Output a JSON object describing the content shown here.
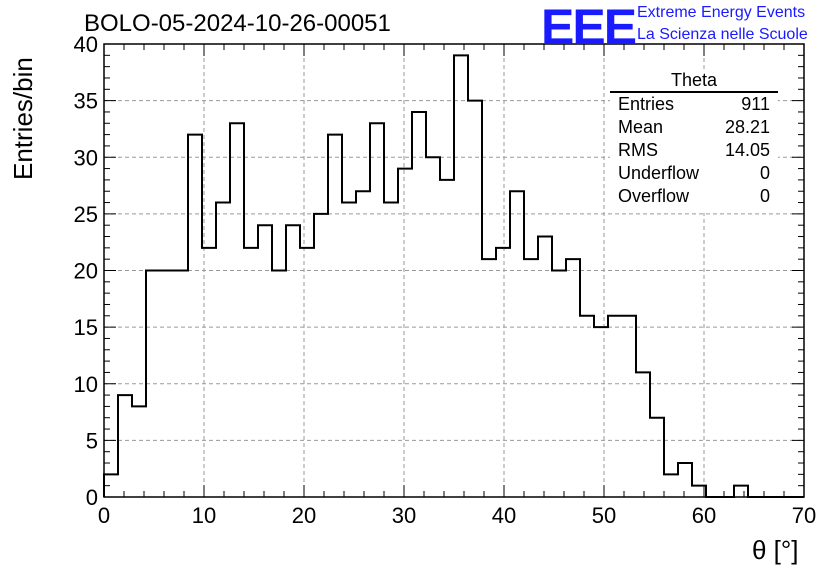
{
  "header": {
    "title": "BOLO-05-2024-10-26-00051",
    "logo_text": "EEE",
    "logo_line1": "Extreme Energy Events",
    "logo_line2": "La Scienza nelle Scuole"
  },
  "stats": {
    "name": "Theta",
    "rows": [
      {
        "key": "Entries",
        "value": "911"
      },
      {
        "key": "Mean",
        "value": "28.21"
      },
      {
        "key": "RMS",
        "value": "14.05"
      },
      {
        "key": "Underflow",
        "value": "0"
      },
      {
        "key": "Overflow",
        "value": "0"
      }
    ]
  },
  "colors": {
    "histogram": "#000000",
    "grid": "#9a9a9a",
    "logo": "#1a1aff"
  },
  "chart_data": {
    "type": "histogram",
    "title": "BOLO-05-2024-10-26-00051",
    "xlabel": "θ [°]",
    "ylabel": "Entries/bin",
    "xlim": [
      0,
      70
    ],
    "ylim": [
      0,
      40
    ],
    "bin_width": 1.4,
    "x_ticks": [
      0,
      10,
      20,
      30,
      40,
      50,
      60,
      70
    ],
    "y_ticks": [
      0,
      5,
      10,
      15,
      20,
      25,
      30,
      35,
      40
    ],
    "grid": true,
    "bin_low_edges": [
      0,
      1.4,
      2.8,
      4.2,
      5.6,
      7.0,
      8.4,
      9.8,
      11.2,
      12.6,
      14.0,
      15.4,
      16.8,
      18.2,
      19.6,
      21.0,
      22.4,
      23.8,
      25.2,
      26.6,
      28.0,
      29.4,
      30.8,
      32.2,
      33.6,
      35.0,
      36.4,
      37.8,
      39.2,
      40.6,
      42.0,
      43.4,
      44.8,
      46.2,
      47.6,
      49.0,
      50.4,
      51.8,
      53.2,
      54.6,
      56.0,
      57.4,
      58.8,
      60.2,
      61.6,
      63.0,
      64.4,
      65.8,
      67.2,
      68.6
    ],
    "counts": [
      2,
      9,
      8,
      20,
      20,
      20,
      32,
      22,
      26,
      33,
      22,
      24,
      20,
      24,
      22,
      25,
      32,
      26,
      27,
      33,
      26,
      29,
      34,
      30,
      28,
      39,
      35,
      21,
      22,
      27,
      21,
      23,
      20,
      21,
      16,
      15,
      16,
      16,
      11,
      7,
      2,
      3,
      1,
      0,
      0,
      1,
      0,
      0,
      0,
      0
    ]
  }
}
